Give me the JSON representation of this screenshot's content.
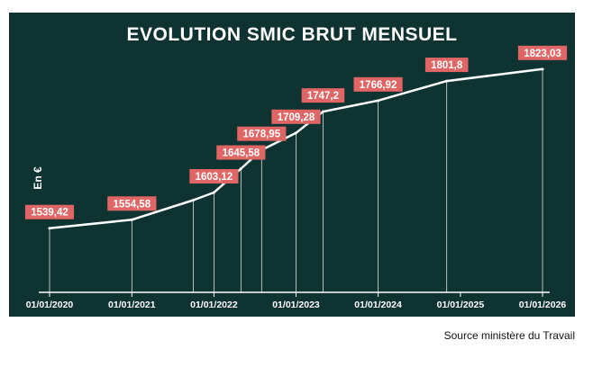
{
  "chart_data": {
    "type": "line",
    "title": "EVOLUTION SMIC BRUT MENSUEL",
    "ylabel": "En €",
    "xlabel": "",
    "source": "Source ministère du Travail",
    "points": [
      {
        "date": "2020-01-01",
        "value": 1539.42,
        "label": "1539,42"
      },
      {
        "date": "2021-01-01",
        "value": 1554.58,
        "label": "1554,58"
      },
      {
        "date": "2021-10-01",
        "value": 1589.47,
        "label": ""
      },
      {
        "date": "2022-01-01",
        "value": 1603.12,
        "label": "1603,12"
      },
      {
        "date": "2022-05-01",
        "value": 1645.58,
        "label": "1645,58"
      },
      {
        "date": "2022-08-01",
        "value": 1678.95,
        "label": "1678,95"
      },
      {
        "date": "2023-01-01",
        "value": 1709.28,
        "label": "1709,28"
      },
      {
        "date": "2023-05-01",
        "value": 1747.2,
        "label": "1747,2"
      },
      {
        "date": "2024-01-01",
        "value": 1766.92,
        "label": "1766,92"
      },
      {
        "date": "2024-11-01",
        "value": 1801.8,
        "label": "1801,8"
      },
      {
        "date": "2026-01-01",
        "value": 1823.03,
        "label": "1823,03"
      }
    ],
    "x_ticks": [
      {
        "date": "2020-01-01",
        "label": "01/01/2020"
      },
      {
        "date": "2021-01-01",
        "label": "01/01/2021"
      },
      {
        "date": "2022-01-01",
        "label": "01/01/2022"
      },
      {
        "date": "2023-01-01",
        "label": "01/01/2023"
      },
      {
        "date": "2024-01-01",
        "label": "01/01/2024"
      },
      {
        "date": "2025-01-01",
        "label": "01/01/2025"
      },
      {
        "date": "2026-01-01",
        "label": "01/01/2026"
      }
    ],
    "ylim": [
      1430,
      1850
    ],
    "grid": false,
    "legend": "none",
    "colors": {
      "background": "#0e3330",
      "line": "#ffffff",
      "label_fill": "#e06666",
      "label_text": "#ffffff",
      "drop_line": "#ffffff"
    }
  }
}
